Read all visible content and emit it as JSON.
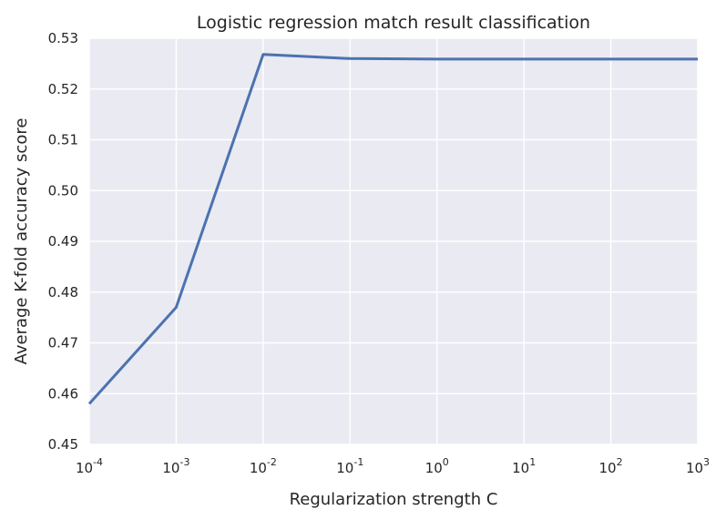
{
  "chart_data": {
    "type": "line",
    "title": "Logistic regression match result classification",
    "xlabel": "Regularization strength C",
    "ylabel": "Average K-fold accuracy score",
    "xscale": "log",
    "xlim": [
      0.0001,
      1000
    ],
    "ylim": [
      0.45,
      0.53
    ],
    "grid": true,
    "background": "#eaeaf2",
    "grid_color": "#ffffff",
    "line_color": "#4c72b0",
    "x_ticks": [
      {
        "value": 0.0001,
        "base": "10",
        "exp": "-4"
      },
      {
        "value": 0.001,
        "base": "10",
        "exp": "-3"
      },
      {
        "value": 0.01,
        "base": "10",
        "exp": "-2"
      },
      {
        "value": 0.1,
        "base": "10",
        "exp": "-1"
      },
      {
        "value": 1,
        "base": "10",
        "exp": "0"
      },
      {
        "value": 10,
        "base": "10",
        "exp": "1"
      },
      {
        "value": 100,
        "base": "10",
        "exp": "2"
      },
      {
        "value": 1000,
        "base": "10",
        "exp": "3"
      }
    ],
    "y_ticks": [
      {
        "value": 0.45,
        "label": "0.45"
      },
      {
        "value": 0.46,
        "label": "0.46"
      },
      {
        "value": 0.47,
        "label": "0.47"
      },
      {
        "value": 0.48,
        "label": "0.48"
      },
      {
        "value": 0.49,
        "label": "0.49"
      },
      {
        "value": 0.5,
        "label": "0.50"
      },
      {
        "value": 0.51,
        "label": "0.51"
      },
      {
        "value": 0.52,
        "label": "0.52"
      },
      {
        "value": 0.53,
        "label": "0.53"
      }
    ],
    "series": [
      {
        "x": [
          0.0001,
          0.001,
          0.01,
          0.1,
          1,
          10,
          100,
          1000
        ],
        "y": [
          0.458,
          0.477,
          0.5268,
          0.526,
          0.5259,
          0.5259,
          0.5259,
          0.5259
        ]
      }
    ]
  }
}
